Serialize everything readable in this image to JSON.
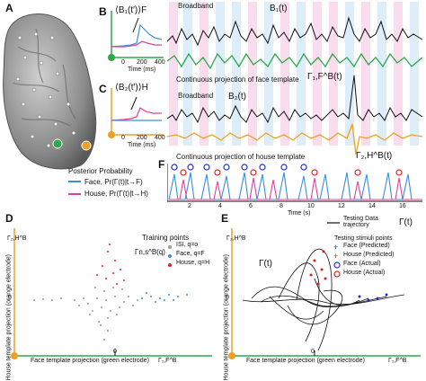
{
  "panels": {
    "A": {
      "label": "A"
    },
    "B": {
      "label": "B",
      "avg_label": "⟨B₁(t′)⟩F",
      "xticks": [
        "0",
        "200",
        "400"
      ],
      "xlabel": "Time (ms)"
    },
    "C": {
      "label": "C",
      "avg_label": "⟨B₂(t′)⟩H",
      "xticks": [
        "0",
        "200",
        "400"
      ],
      "xlabel": "Time (ms)"
    },
    "top_traces": {
      "broadband_1": "Broadband",
      "b1": "B₁(t)",
      "proj_face": "Continuous projection of face template",
      "gamma_face": "Γ₁,F^B(t)",
      "broadband_2": "Broadband",
      "b2": "B₂(t)",
      "proj_house": "Continuous projection of house template",
      "gamma_house": "Γ₂,H^B(t)"
    },
    "legend_prob": {
      "title": "Posterior Probability",
      "face": "Face, Pr(Γ(t)|t→F)",
      "house": "House, Pr(Γ(t)|t→H)"
    },
    "F": {
      "label": "F",
      "xticks": [
        "2",
        "4",
        "6",
        "8",
        "10",
        "12",
        "14",
        "16"
      ],
      "xlabel": "Time (s)"
    },
    "D": {
      "label": "D",
      "ylabel": "House template projection (orange electrode)",
      "xlabel": "Face template projection (green electrode)",
      "yaxis_symbol": "Γ₂,H^B",
      "xaxis_symbol": "Γ₁,F^B",
      "x_zero": "0",
      "y_zero": "0",
      "legend_title": "Training points",
      "legend_symbol": "Γn,s^B(q)",
      "legend_items": [
        "ISI, q=o",
        "Face, q=F",
        "House, q=H"
      ]
    },
    "E": {
      "label": "E",
      "ylabel": "House template projection (orange electrode)",
      "xlabel": "Face template projection (green electrode)",
      "yaxis_symbol": "Γ₂,H^B",
      "xaxis_symbol": "Γ₁,F^B",
      "x_zero": "0",
      "y_zero": "0",
      "gamma_label": "Γ(t)",
      "legend_traj": "Testing Data trajectory",
      "legend_traj_symbol": "Γ(t)",
      "legend_stim_title": "Testing stimuli points",
      "legend_items": [
        "Face (Predicted)",
        "House (Predicted)",
        "Face (Actual)",
        "House (Actual)"
      ]
    }
  },
  "colors": {
    "face": "#3a8fd6",
    "house": "#e0409a",
    "green": "#2aa84a",
    "orange": "#f0a020",
    "red": "#e02020",
    "blue": "#2030d0",
    "gray": "#9a9a9a",
    "pink_band": "#f7c8e0",
    "blue_band": "#c8e4f7"
  }
}
